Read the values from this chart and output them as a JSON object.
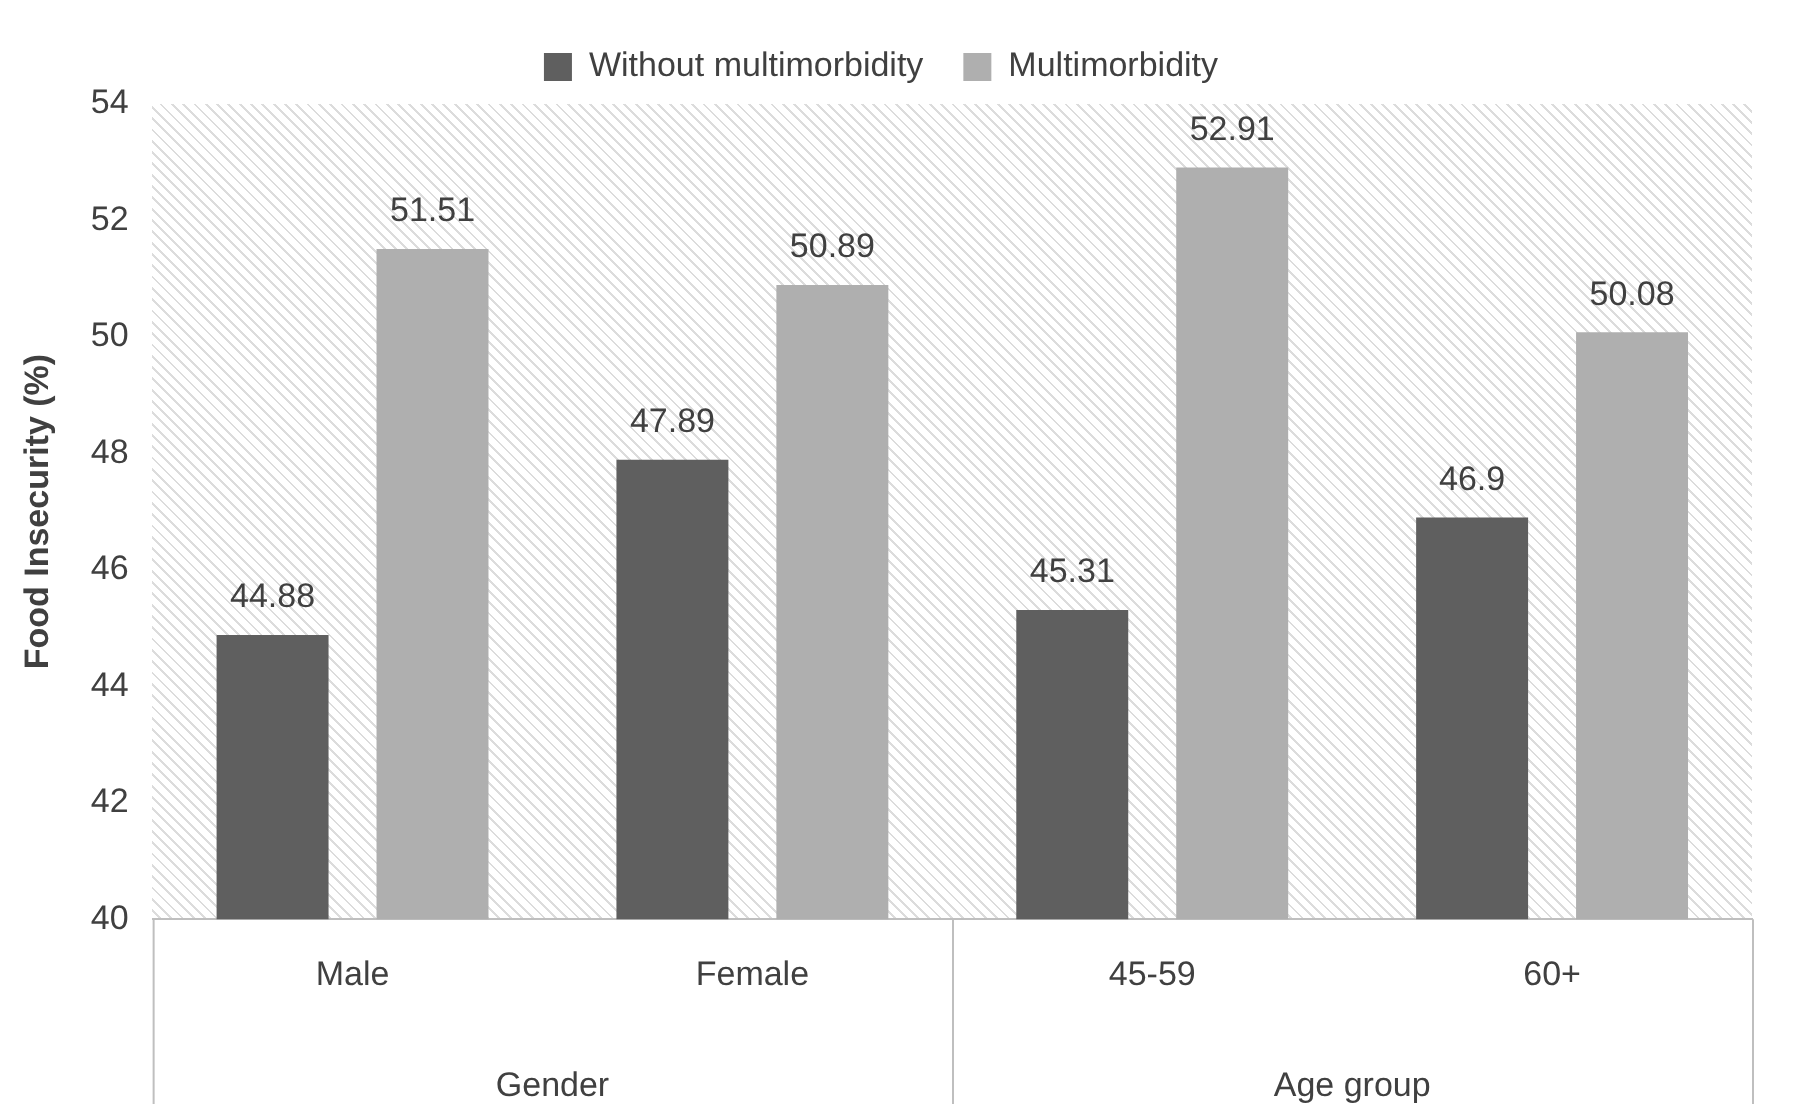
{
  "chart_data": {
    "type": "bar",
    "ylabel": "Food Insecurity (%)",
    "categories": [
      "Male",
      "Female",
      "45-59",
      "60+"
    ],
    "series": [
      {
        "name": "Without multimorbidity",
        "color": "#5f5f5f",
        "values": [
          44.88,
          47.89,
          45.31,
          46.9
        ]
      },
      {
        "name": "Multimorbidity",
        "color": "#afafaf",
        "values": [
          51.51,
          50.89,
          52.91,
          50.08
        ]
      }
    ],
    "ylim": [
      40,
      54
    ],
    "yticks": [
      40,
      42,
      44,
      46,
      48,
      50,
      52,
      54
    ],
    "grid": false,
    "legend": "top",
    "data_labels": true,
    "annotations": [
      "Gender",
      "Age group"
    ]
  }
}
